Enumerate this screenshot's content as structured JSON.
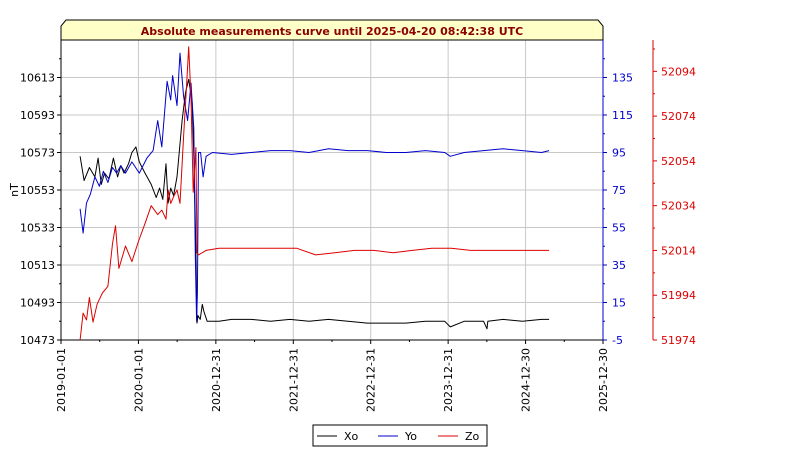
{
  "chart_data": {
    "type": "line",
    "title": "Absolute measurements curve until 2025-04-20 08:42:38 UTC",
    "ylabel": "nT",
    "xlabel": "",
    "x_ticks": [
      "2019-01-01",
      "2020-01-01",
      "2020-12-31",
      "2021-12-31",
      "2022-12-31",
      "2023-12-31",
      "2024-12-30",
      "2025-12-30"
    ],
    "xlim": [
      "2019-01-01",
      "2025-12-30"
    ],
    "grid": true,
    "legend_position": "bottom-center",
    "axes": {
      "left": {
        "color": "#000000",
        "ylim": [
          10473,
          10633
        ],
        "ticks": [
          10473,
          10493,
          10513,
          10533,
          10553,
          10573,
          10593,
          10613
        ]
      },
      "right1": {
        "color": "#0000cc",
        "ylim": [
          -5,
          155
        ],
        "ticks": [
          -5,
          15,
          35,
          55,
          75,
          95,
          115,
          135
        ]
      },
      "right2": {
        "color": "#dd0000",
        "ylim": [
          51974,
          52108
        ],
        "ticks": [
          51974,
          51994,
          52014,
          52034,
          52054,
          52074,
          52094
        ]
      }
    },
    "series": [
      {
        "name": "Xo",
        "color": "#000000",
        "axis": "left",
        "points": [
          [
            "2019-04-01",
            10571
          ],
          [
            "2019-04-20",
            10558
          ],
          [
            "2019-05-15",
            10565
          ],
          [
            "2019-06-10",
            10560
          ],
          [
            "2019-06-25",
            10570
          ],
          [
            "2019-07-10",
            10556
          ],
          [
            "2019-07-25",
            10562
          ],
          [
            "2019-08-15",
            10559
          ],
          [
            "2019-09-05",
            10570
          ],
          [
            "2019-09-25",
            10560
          ],
          [
            "2019-10-10",
            10566
          ],
          [
            "2019-10-25",
            10562
          ],
          [
            "2019-11-15",
            10567
          ],
          [
            "2019-12-01",
            10573
          ],
          [
            "2019-12-20",
            10576
          ],
          [
            "2020-01-05",
            10568
          ],
          [
            "2020-02-01",
            10562
          ],
          [
            "2020-03-01",
            10556
          ],
          [
            "2020-03-25",
            10549
          ],
          [
            "2020-04-10",
            10554
          ],
          [
            "2020-04-25",
            10548
          ],
          [
            "2020-05-10",
            10567
          ],
          [
            "2020-05-20",
            10546
          ],
          [
            "2020-06-01",
            10554
          ],
          [
            "2020-06-15",
            10550
          ],
          [
            "2020-07-01",
            10560
          ],
          [
            "2020-07-25",
            10590
          ],
          [
            "2020-08-10",
            10605
          ],
          [
            "2020-08-25",
            10612
          ],
          [
            "2020-09-10",
            10600
          ],
          [
            "2020-09-20",
            10565
          ],
          [
            "2020-09-28",
            10520
          ],
          [
            "2020-10-03",
            10482
          ],
          [
            "2020-10-08",
            10486
          ],
          [
            "2020-10-18",
            10484
          ],
          [
            "2020-10-28",
            10492
          ],
          [
            "2020-11-05",
            10488
          ],
          [
            "2020-11-20",
            10483
          ],
          [
            "2021-01-15",
            10483
          ],
          [
            "2021-03-15",
            10484
          ],
          [
            "2021-06-15",
            10484
          ],
          [
            "2021-09-15",
            10483
          ],
          [
            "2021-12-15",
            10484
          ],
          [
            "2022-03-15",
            10483
          ],
          [
            "2022-06-15",
            10484
          ],
          [
            "2022-09-15",
            10483
          ],
          [
            "2022-12-15",
            10482
          ],
          [
            "2023-03-15",
            10482
          ],
          [
            "2023-06-15",
            10482
          ],
          [
            "2023-09-15",
            10483
          ],
          [
            "2023-12-15",
            10483
          ],
          [
            "2024-01-10",
            10480
          ],
          [
            "2024-03-15",
            10483
          ],
          [
            "2024-06-15",
            10483
          ],
          [
            "2024-07-01",
            10479
          ],
          [
            "2024-07-05",
            10483
          ],
          [
            "2024-09-15",
            10484
          ],
          [
            "2024-12-15",
            10483
          ],
          [
            "2025-03-15",
            10484
          ],
          [
            "2025-04-20",
            10484
          ]
        ]
      },
      {
        "name": "Yo",
        "color": "#0000cc",
        "axis": "right1",
        "points": [
          [
            "2019-04-01",
            65
          ],
          [
            "2019-04-15",
            52
          ],
          [
            "2019-05-01",
            68
          ],
          [
            "2019-05-20",
            73
          ],
          [
            "2019-06-10",
            82
          ],
          [
            "2019-07-01",
            77
          ],
          [
            "2019-07-20",
            85
          ],
          [
            "2019-08-10",
            79
          ],
          [
            "2019-09-01",
            87
          ],
          [
            "2019-09-20",
            84
          ],
          [
            "2019-10-10",
            88
          ],
          [
            "2019-11-01",
            84
          ],
          [
            "2019-12-01",
            90
          ],
          [
            "2020-01-05",
            84
          ],
          [
            "2020-02-10",
            92
          ],
          [
            "2020-03-10",
            96
          ],
          [
            "2020-04-01",
            112
          ],
          [
            "2020-04-20",
            98
          ],
          [
            "2020-05-15",
            133
          ],
          [
            "2020-06-01",
            123
          ],
          [
            "2020-06-10",
            136
          ],
          [
            "2020-07-01",
            120
          ],
          [
            "2020-07-15",
            148
          ],
          [
            "2020-08-01",
            125
          ],
          [
            "2020-08-20",
            112
          ],
          [
            "2020-09-05",
            132
          ],
          [
            "2020-09-18",
            108
          ],
          [
            "2020-09-25",
            40
          ],
          [
            "2020-10-01",
            5
          ],
          [
            "2020-10-05",
            20
          ],
          [
            "2020-10-10",
            95
          ],
          [
            "2020-10-20",
            95
          ],
          [
            "2020-11-01",
            82
          ],
          [
            "2020-11-15",
            93
          ],
          [
            "2020-12-15",
            95
          ],
          [
            "2021-03-15",
            94
          ],
          [
            "2021-06-15",
            95
          ],
          [
            "2021-09-15",
            96
          ],
          [
            "2021-12-15",
            96
          ],
          [
            "2022-03-15",
            95
          ],
          [
            "2022-06-15",
            97
          ],
          [
            "2022-09-15",
            96
          ],
          [
            "2022-12-15",
            96
          ],
          [
            "2023-03-15",
            95
          ],
          [
            "2023-06-15",
            95
          ],
          [
            "2023-09-15",
            96
          ],
          [
            "2023-12-15",
            95
          ],
          [
            "2024-01-10",
            93
          ],
          [
            "2024-03-15",
            95
          ],
          [
            "2024-06-15",
            96
          ],
          [
            "2024-09-15",
            97
          ],
          [
            "2024-12-15",
            96
          ],
          [
            "2025-03-15",
            95
          ],
          [
            "2025-04-20",
            96
          ]
        ]
      },
      {
        "name": "Zo",
        "color": "#dd0000",
        "axis": "right2",
        "points": [
          [
            "2019-04-01",
            51974
          ],
          [
            "2019-04-15",
            51986
          ],
          [
            "2019-05-01",
            51983
          ],
          [
            "2019-05-15",
            51993
          ],
          [
            "2019-06-01",
            51982
          ],
          [
            "2019-06-20",
            51990
          ],
          [
            "2019-07-15",
            51995
          ],
          [
            "2019-08-10",
            51998
          ],
          [
            "2019-09-01",
            52017
          ],
          [
            "2019-09-15",
            52025
          ],
          [
            "2019-10-01",
            52006
          ],
          [
            "2019-11-01",
            52016
          ],
          [
            "2019-12-01",
            52009
          ],
          [
            "2020-01-01",
            52018
          ],
          [
            "2020-02-01",
            52026
          ],
          [
            "2020-03-01",
            52034
          ],
          [
            "2020-04-01",
            52030
          ],
          [
            "2020-04-20",
            52032
          ],
          [
            "2020-05-10",
            52028
          ],
          [
            "2020-05-20",
            52041
          ],
          [
            "2020-06-01",
            52035
          ],
          [
            "2020-06-15",
            52038
          ],
          [
            "2020-07-01",
            52041
          ],
          [
            "2020-07-15",
            52035
          ],
          [
            "2020-08-01",
            52065
          ],
          [
            "2020-08-15",
            52088
          ],
          [
            "2020-08-25",
            52105
          ],
          [
            "2020-09-05",
            52082
          ],
          [
            "2020-09-15",
            52040
          ],
          [
            "2020-09-22",
            52050
          ],
          [
            "2020-09-28",
            52060
          ],
          [
            "2020-10-03",
            52013
          ],
          [
            "2020-10-10",
            52012
          ],
          [
            "2020-11-15",
            52014
          ],
          [
            "2021-01-15",
            52015
          ],
          [
            "2021-04-15",
            52015
          ],
          [
            "2021-07-15",
            52015
          ],
          [
            "2021-10-15",
            52015
          ],
          [
            "2022-01-15",
            52015
          ],
          [
            "2022-04-15",
            52012
          ],
          [
            "2022-07-15",
            52013
          ],
          [
            "2022-10-15",
            52014
          ],
          [
            "2023-01-15",
            52014
          ],
          [
            "2023-04-15",
            52013
          ],
          [
            "2023-07-15",
            52014
          ],
          [
            "2023-10-15",
            52015
          ],
          [
            "2024-01-15",
            52015
          ],
          [
            "2024-04-15",
            52014
          ],
          [
            "2024-07-15",
            52014
          ],
          [
            "2024-10-15",
            52014
          ],
          [
            "2025-01-15",
            52014
          ],
          [
            "2025-04-20",
            52014
          ]
        ]
      }
    ]
  }
}
